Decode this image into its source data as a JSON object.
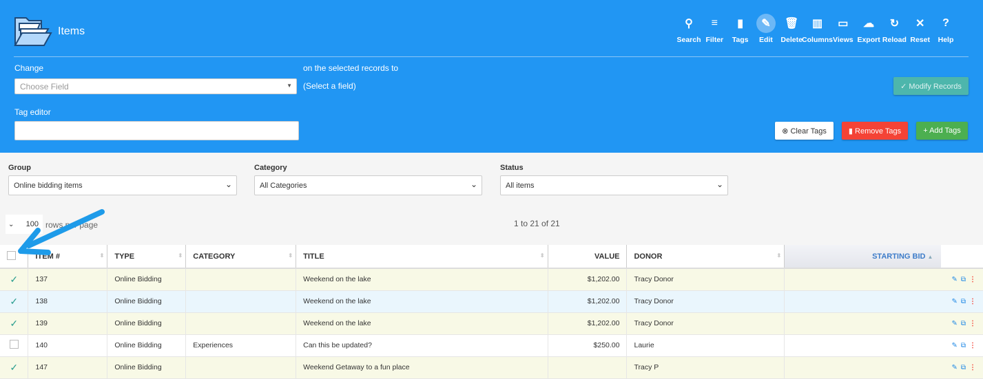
{
  "header": {
    "title": "Items",
    "toolbar": [
      {
        "label": "Search",
        "icon": "search-icon",
        "glyph": "⚲"
      },
      {
        "label": "Filter",
        "icon": "filter-icon",
        "glyph": "≡"
      },
      {
        "label": "Tags",
        "icon": "bookmark-icon",
        "glyph": "▮"
      },
      {
        "label": "Edit",
        "icon": "pencil-icon",
        "glyph": "✎",
        "active": true
      },
      {
        "label": "Delete",
        "icon": "trash-icon",
        "glyph": "🗑"
      },
      {
        "label": "Columns",
        "icon": "columns-icon",
        "glyph": "▥"
      },
      {
        "label": "Views",
        "icon": "folder-icon",
        "glyph": "▭"
      },
      {
        "label": "Export",
        "icon": "cloud-download-icon",
        "glyph": "☁"
      },
      {
        "label": "Reload",
        "icon": "reload-icon",
        "glyph": "↻"
      },
      {
        "label": "Reset",
        "icon": "close-icon",
        "glyph": "✕"
      },
      {
        "label": "Help",
        "icon": "help-icon",
        "glyph": "?"
      }
    ]
  },
  "edit": {
    "change_label": "Change",
    "field_placeholder": "Choose Field",
    "on_selected": "on the selected records to",
    "select_field": "(Select a field)",
    "modify": "✓ Modify Records",
    "tag_editor": "Tag editor",
    "clear_tags": "⊗ Clear Tags",
    "remove_tags": "▮ Remove Tags",
    "add_tags": "+ Add Tags"
  },
  "filters": {
    "group_label": "Group",
    "group_value": "Online bidding items",
    "category_label": "Category",
    "category_value": "All Categories",
    "status_label": "Status",
    "status_value": "All items"
  },
  "paging": {
    "rows": "100",
    "rows_label": "rows per page",
    "range": "1 to 21 of 21"
  },
  "table": {
    "columns": [
      "ITEM #",
      "TYPE",
      "CATEGORY",
      "TITLE",
      "VALUE",
      "DONOR",
      "STARTING BID"
    ],
    "rows": [
      {
        "checked": true,
        "item": "137",
        "type": "Online Bidding",
        "category": "",
        "title": "Weekend on the lake",
        "value": "$1,202.00",
        "donor": "Tracy Donor",
        "bid": ""
      },
      {
        "checked": true,
        "item": "138",
        "type": "Online Bidding",
        "category": "",
        "title": "Weekend on the lake",
        "value": "$1,202.00",
        "donor": "Tracy Donor",
        "bid": ""
      },
      {
        "checked": true,
        "item": "139",
        "type": "Online Bidding",
        "category": "",
        "title": "Weekend on the lake",
        "value": "$1,202.00",
        "donor": "Tracy Donor",
        "bid": ""
      },
      {
        "checked": false,
        "item": "140",
        "type": "Online Bidding",
        "category": "Experiences",
        "title": "Can this be updated?",
        "value": "$250.00",
        "donor": "Laurie",
        "bid": ""
      },
      {
        "checked": true,
        "item": "147",
        "type": "Online Bidding",
        "category": "",
        "title": "Weekend Getaway to a fun place",
        "value": "",
        "donor": "Tracy P",
        "bid": ""
      }
    ]
  },
  "colors": {
    "header": "#2196f3",
    "danger": "#f44336",
    "success": "#4caf50",
    "modify": "#4db6ac"
  }
}
